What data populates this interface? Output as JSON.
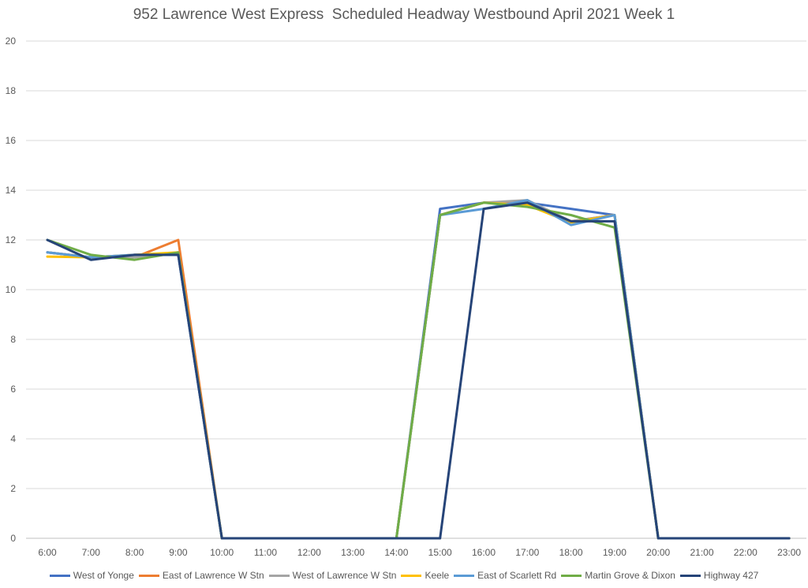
{
  "chart_data": {
    "type": "line",
    "title": "952 Lawrence West Express  Scheduled Headway Westbound April 2021 Week 1",
    "xlabel": "",
    "ylabel": "",
    "ylim": [
      0,
      20
    ],
    "yticks": [
      "0",
      "2",
      "4",
      "6",
      "8",
      "10",
      "12",
      "14",
      "16",
      "18",
      "20"
    ],
    "categories": [
      "6:00",
      "7:00",
      "8:00",
      "9:00",
      "10:00",
      "11:00",
      "12:00",
      "13:00",
      "14:00",
      "15:00",
      "16:00",
      "17:00",
      "18:00",
      "19:00",
      "20:00",
      "21:00",
      "22:00",
      "23:00"
    ],
    "grid": true,
    "legend_position": "bottom",
    "series": [
      {
        "name": "West of Yonge",
        "color": "#4472C4",
        "values": [
          11.5,
          11.3,
          11.4,
          11.4,
          0,
          0,
          0,
          0,
          0,
          13.25,
          13.5,
          13.5,
          13.25,
          13.0,
          0,
          0,
          0,
          0
        ]
      },
      {
        "name": "East of Lawrence W Stn",
        "color": "#ED7D31",
        "values": [
          11.5,
          11.3,
          11.3,
          12.0,
          0,
          0,
          0,
          0,
          0,
          13.0,
          13.5,
          13.5,
          12.75,
          13.0,
          0,
          0,
          0,
          0
        ]
      },
      {
        "name": "West of Lawrence W Stn",
        "color": "#A5A5A5",
        "values": [
          11.5,
          11.3,
          11.3,
          11.5,
          0,
          0,
          0,
          0,
          0,
          13.0,
          13.5,
          13.6,
          12.75,
          13.0,
          0,
          0,
          0,
          0
        ]
      },
      {
        "name": "Keele",
        "color": "#FFC000",
        "values": [
          11.33,
          11.3,
          11.4,
          11.5,
          0,
          0,
          0,
          0,
          0,
          13.0,
          13.5,
          13.4,
          12.7,
          13.0,
          0,
          0,
          0,
          0
        ]
      },
      {
        "name": "East of Scarlett Rd",
        "color": "#5B9BD5",
        "values": [
          11.5,
          11.3,
          11.4,
          11.4,
          0,
          0,
          0,
          0,
          0,
          13.0,
          13.25,
          13.6,
          12.6,
          13.0,
          0,
          0,
          0,
          0
        ]
      },
      {
        "name": "Martin Grove & Dixon",
        "color": "#70AD47",
        "values": [
          12.0,
          11.4,
          11.2,
          11.5,
          0,
          0,
          0,
          0,
          0,
          13.0,
          13.5,
          13.33,
          13.0,
          12.5,
          0,
          0,
          0,
          0
        ]
      },
      {
        "name": "Highway 427",
        "color": "#264478",
        "values": [
          12.0,
          11.2,
          11.4,
          11.4,
          0,
          0,
          0,
          0,
          0,
          0,
          13.25,
          13.5,
          12.75,
          12.75,
          0,
          0,
          0,
          0
        ]
      }
    ]
  }
}
